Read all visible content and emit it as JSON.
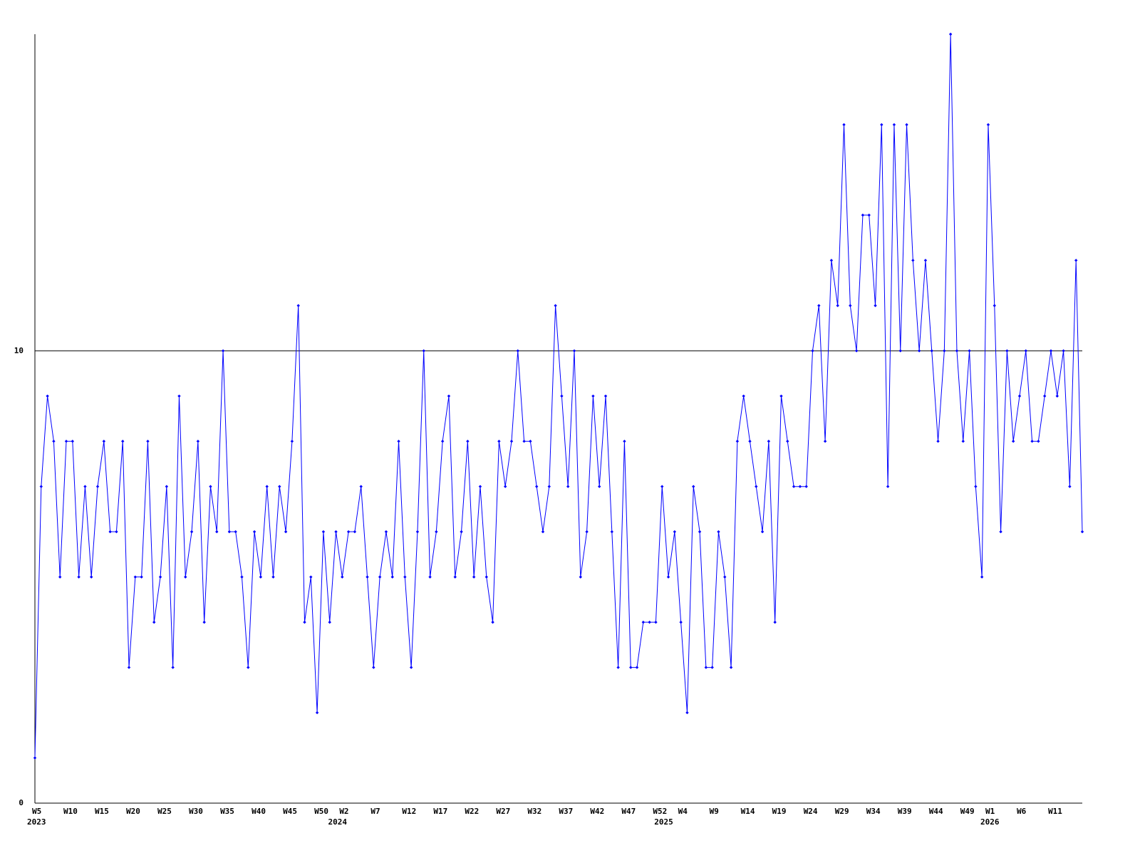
{
  "chart_data": {
    "type": "line",
    "color": "#0000ff",
    "ylim": [
      0,
      17
    ],
    "yticks": [
      0,
      10
    ],
    "grid": true,
    "categories": [
      "W5",
      null,
      null,
      null,
      null,
      "W10",
      null,
      null,
      null,
      null,
      "W15",
      null,
      null,
      null,
      null,
      "W20",
      null,
      null,
      null,
      null,
      "W25",
      null,
      null,
      null,
      null,
      "W30",
      null,
      null,
      null,
      null,
      "W35",
      null,
      null,
      null,
      null,
      "W40",
      null,
      null,
      null,
      null,
      "W45",
      null,
      null,
      null,
      null,
      "W50",
      null,
      null,
      null,
      "W2",
      null,
      null,
      null,
      null,
      "W7",
      null,
      null,
      null,
      null,
      "W12",
      null,
      null,
      null,
      null,
      "W17",
      null,
      null,
      null,
      null,
      "W22",
      null,
      null,
      null,
      null,
      "W27",
      null,
      null,
      null,
      null,
      "W32",
      null,
      null,
      null,
      null,
      "W37",
      null,
      null,
      null,
      null,
      "W42",
      null,
      null,
      null,
      null,
      "W47",
      null,
      null,
      null,
      null,
      "W52",
      null,
      null,
      null,
      "W4",
      null,
      null,
      null,
      null,
      "W9",
      null,
      null,
      null,
      null,
      "W14",
      null,
      null,
      null,
      null,
      "W19",
      null,
      null,
      null,
      null,
      "W24",
      null,
      null,
      null,
      null,
      "W29",
      null,
      null,
      null,
      null,
      "W34",
      null,
      null,
      null,
      null,
      "W39",
      null,
      null,
      null,
      null,
      "W44",
      null,
      null,
      null,
      null,
      "W49",
      null,
      null,
      null,
      "W1",
      null,
      null,
      null,
      null,
      "W6",
      null,
      null,
      null,
      null,
      "W11",
      null,
      null,
      null,
      null,
      null
    ],
    "year_labels": [
      2023,
      null,
      null,
      null,
      null,
      null,
      null,
      null,
      null,
      null,
      null,
      null,
      null,
      null,
      null,
      null,
      null,
      null,
      null,
      null,
      null,
      null,
      null,
      null,
      null,
      null,
      null,
      null,
      null,
      null,
      null,
      null,
      null,
      null,
      null,
      null,
      null,
      null,
      null,
      null,
      null,
      null,
      null,
      null,
      null,
      null,
      null,
      null,
      2024,
      null,
      null,
      null,
      null,
      null,
      null,
      null,
      null,
      null,
      null,
      null,
      null,
      null,
      null,
      null,
      null,
      null,
      null,
      null,
      null,
      null,
      null,
      null,
      null,
      null,
      null,
      null,
      null,
      null,
      null,
      null,
      null,
      null,
      null,
      null,
      null,
      null,
      null,
      null,
      null,
      null,
      null,
      null,
      null,
      null,
      null,
      null,
      null,
      null,
      null,
      null,
      2025,
      null,
      null,
      null,
      null,
      null,
      null,
      null,
      null,
      null,
      null,
      null,
      null,
      null,
      null,
      null,
      null,
      null,
      null,
      null,
      null,
      null,
      null,
      null,
      null,
      null,
      null,
      null,
      null,
      null,
      null,
      null,
      null,
      null,
      null,
      null,
      null,
      null,
      null,
      null,
      null,
      null,
      null,
      null,
      null,
      null,
      null,
      null,
      null,
      null,
      null,
      null,
      2026,
      null,
      null,
      null,
      null,
      null,
      null,
      null,
      null,
      null,
      null,
      null,
      null,
      null,
      null,
      null
    ],
    "values": [
      1,
      7,
      9,
      8,
      5,
      8,
      8,
      5,
      7,
      5,
      7,
      8,
      6,
      6,
      8,
      3,
      5,
      5,
      8,
      4,
      5,
      7,
      3,
      9,
      5,
      6,
      8,
      4,
      7,
      6,
      10,
      6,
      6,
      5,
      3,
      6,
      5,
      7,
      5,
      7,
      6,
      8,
      11,
      4,
      5,
      2,
      6,
      4,
      6,
      5,
      6,
      6,
      7,
      5,
      3,
      5,
      6,
      5,
      8,
      5,
      3,
      6,
      10,
      5,
      6,
      8,
      9,
      5,
      6,
      8,
      5,
      7,
      5,
      4,
      8,
      7,
      8,
      10,
      8,
      8,
      7,
      6,
      7,
      11,
      9,
      7,
      10,
      5,
      6,
      9,
      7,
      9,
      6,
      3,
      8,
      3,
      3,
      4,
      4,
      4,
      7,
      5,
      6,
      4,
      2,
      7,
      6,
      3,
      3,
      6,
      5,
      3,
      8,
      9,
      8,
      7,
      6,
      8,
      4,
      9,
      8,
      7,
      7,
      7,
      10,
      11,
      8,
      12,
      11,
      15,
      11,
      10,
      13,
      13,
      11,
      15,
      7,
      15,
      10,
      15,
      12,
      10,
      12,
      10,
      8,
      10,
      17,
      10,
      8,
      10,
      7,
      5,
      15,
      11,
      6,
      10,
      8,
      9,
      10,
      8,
      8,
      9,
      10,
      9,
      10,
      7,
      12,
      6
    ]
  }
}
